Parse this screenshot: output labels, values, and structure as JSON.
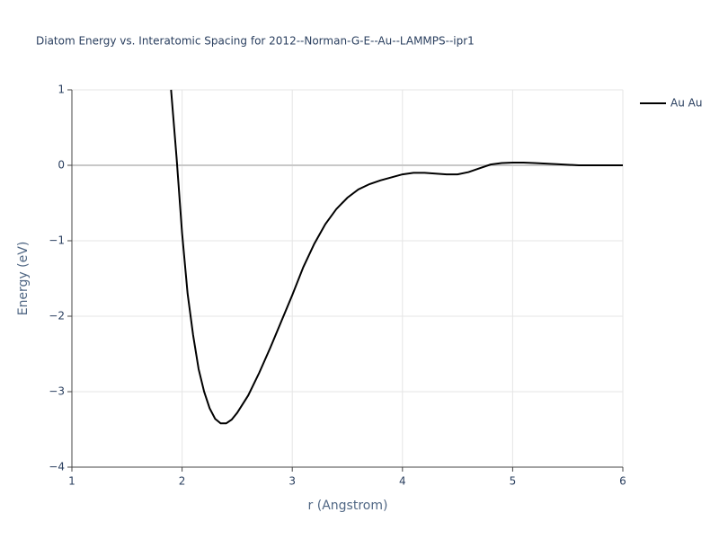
{
  "chart_data": {
    "type": "line",
    "title": "Diatom Energy vs. Interatomic Spacing for 2012--Norman-G-E--Au--LAMMPS--ipr1",
    "x_label": "r (Angstrom)",
    "y_label": "Energy (eV)",
    "x": [
      1.9,
      1.95,
      2.0,
      2.05,
      2.1,
      2.15,
      2.2,
      2.25,
      2.3,
      2.35,
      2.4,
      2.45,
      2.5,
      2.6,
      2.7,
      2.8,
      2.9,
      3.0,
      3.1,
      3.2,
      3.3,
      3.4,
      3.5,
      3.6,
      3.7,
      3.8,
      3.9,
      4.0,
      4.1,
      4.2,
      4.3,
      4.4,
      4.5,
      4.6,
      4.7,
      4.8,
      4.9,
      5.0,
      5.1,
      5.2,
      5.4,
      5.6,
      5.8,
      6.0
    ],
    "series": [
      {
        "name": "Au Au",
        "color": "#000000",
        "values": [
          1.0,
          0.1,
          -0.9,
          -1.7,
          -2.25,
          -2.7,
          -3.0,
          -3.22,
          -3.36,
          -3.42,
          -3.42,
          -3.37,
          -3.28,
          -3.05,
          -2.75,
          -2.42,
          -2.07,
          -1.72,
          -1.35,
          -1.04,
          -0.78,
          -0.58,
          -0.43,
          -0.32,
          -0.25,
          -0.2,
          -0.16,
          -0.12,
          -0.1,
          -0.1,
          -0.11,
          -0.12,
          -0.12,
          -0.09,
          -0.04,
          0.01,
          0.03,
          0.035,
          0.035,
          0.03,
          0.015,
          0.0,
          0.0,
          0.0
        ]
      }
    ],
    "xlim": [
      1,
      6
    ],
    "ylim": [
      -4,
      1
    ],
    "xticks": [
      1,
      2,
      3,
      4,
      5,
      6
    ],
    "yticks": [
      {
        "value": -4,
        "label": "−4"
      },
      {
        "value": -3,
        "label": "−3"
      },
      {
        "value": -2,
        "label": "−2"
      },
      {
        "value": -1,
        "label": "−1"
      },
      0,
      1
    ],
    "grid": true,
    "legend": "right"
  }
}
